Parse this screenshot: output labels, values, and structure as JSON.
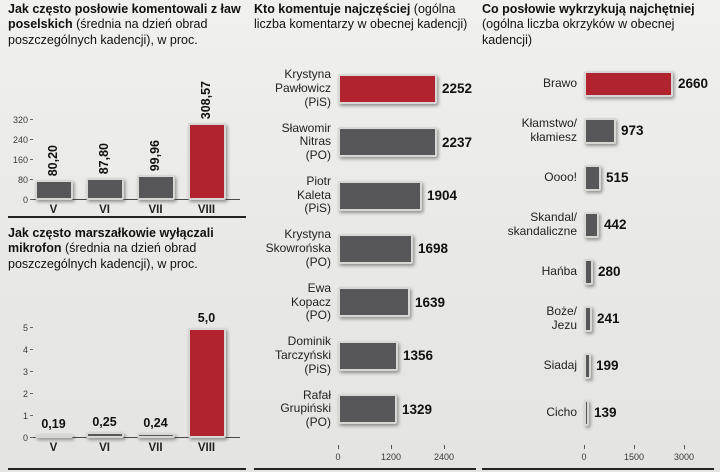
{
  "colors": {
    "bar_gray": "#57575a",
    "bar_red": "#b22330",
    "bar_border": "#d7d7d4"
  },
  "chart_data": [
    {
      "id": "comments_freq",
      "type": "bar",
      "title_bold": "Jak często posłowie komentowali z ław poselskich",
      "title_normal": " (średnia na dzień obrad poszczególnych kadencji), w proc.",
      "categories": [
        "V",
        "VI",
        "VII",
        "VIII"
      ],
      "values": [
        80.2,
        87.8,
        99.96,
        308.57
      ],
      "value_labels": [
        "80,20",
        "87,80",
        "99,96",
        "308,57"
      ],
      "highlight_index": 3,
      "ylim": [
        0,
        320
      ],
      "yticks": [
        0,
        80,
        160,
        240,
        320
      ]
    },
    {
      "id": "mic_off",
      "type": "bar",
      "title_bold": "Jak często marszałkowie wyłączali mikrofon",
      "title_normal": " (średnia na dzień obrad poszczególnych kadencji), w proc.",
      "categories": [
        "V",
        "VI",
        "VII",
        "VIII"
      ],
      "values": [
        0.19,
        0.25,
        0.24,
        5.0
      ],
      "value_labels": [
        "0,19",
        "0,25",
        "0,24",
        "5,0"
      ],
      "highlight_index": 3,
      "ylim": [
        0,
        5
      ],
      "yticks": [
        0,
        1,
        2,
        3,
        4,
        5
      ]
    },
    {
      "id": "top_commenters",
      "type": "hbar",
      "title_bold": "Kto komentuje najczęściej",
      "title_normal": " (ogólna liczba komentarzy w obecnej kadencji)",
      "rows": [
        {
          "label": "Krystyna\nPawłowicz (PiS)",
          "value": 2252
        },
        {
          "label": "Sławomir\nNitras\n(PO)",
          "value": 2237
        },
        {
          "label": "Piotr\nKaleta\n(PiS)",
          "value": 1904
        },
        {
          "label": "Krystyna\nSkowrońska\n(PO)",
          "value": 1698
        },
        {
          "label": "Ewa\nKopacz\n(PO)",
          "value": 1639
        },
        {
          "label": "Dominik\nTarczyński\n(PiS)",
          "value": 1356
        },
        {
          "label": "Rafał\nGrupiński\n(PO)",
          "value": 1329
        }
      ],
      "highlight_index": 0,
      "xlim": [
        0,
        2400
      ],
      "xticks": [
        0,
        1200,
        2400
      ]
    },
    {
      "id": "top_shouts",
      "type": "hbar",
      "title_bold": "Co posłowie wykrzykują najchętniej",
      "title_normal": " (ogólna liczba okrzyków w obecnej kadencji)",
      "rows": [
        {
          "label": "Brawo",
          "value": 2660
        },
        {
          "label": "Kłamstwo/\nkłamiesz",
          "value": 973
        },
        {
          "label": "Oooo!",
          "value": 515
        },
        {
          "label": "Skandal/\nskandaliczne",
          "value": 442
        },
        {
          "label": "Hańba",
          "value": 280
        },
        {
          "label": "Boże/\nJezu",
          "value": 241
        },
        {
          "label": "Siadaj",
          "value": 199
        },
        {
          "label": "Cicho",
          "value": 139
        }
      ],
      "highlight_index": 0,
      "xlim": [
        0,
        3000
      ],
      "xticks": [
        0,
        1500,
        3000
      ]
    }
  ]
}
